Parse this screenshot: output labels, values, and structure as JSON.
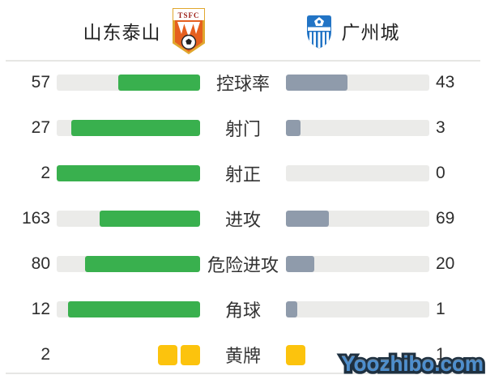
{
  "header": {
    "home": {
      "name": "山东泰山",
      "badge_icon": "shandong-taishan-crest"
    },
    "away": {
      "name": "广州城",
      "badge_icon": "guangzhou-city-crest"
    }
  },
  "chart_data": {
    "type": "bar",
    "subtype": "paired-horizontal-comparison",
    "title": "",
    "teams": {
      "home": "山东泰山",
      "away": "广州城"
    },
    "rows": [
      {
        "label": "控球率",
        "home": 57,
        "away": 43,
        "display": "bar"
      },
      {
        "label": "射门",
        "home": 27,
        "away": 3,
        "display": "bar"
      },
      {
        "label": "射正",
        "home": 2,
        "away": 0,
        "display": "bar"
      },
      {
        "label": "进攻",
        "home": 163,
        "away": 69,
        "display": "bar"
      },
      {
        "label": "危险进攻",
        "home": 80,
        "away": 20,
        "display": "bar"
      },
      {
        "label": "角球",
        "home": 12,
        "away": 1,
        "display": "bar"
      },
      {
        "label": "黄牌",
        "home": 2,
        "away": 1,
        "display": "cards"
      }
    ],
    "layout": {
      "home_fill_anchor": "right",
      "away_fill_anchor": "left",
      "fill_ratio_rule": "value / (home + away)"
    },
    "colors": {
      "home_fill": "#39b04e",
      "away_fill": "#8f9bab",
      "track": "#ebebe9",
      "yellow_card": "#fcc30d",
      "divider": "#e6e6e4",
      "text": "#2d2d2d"
    }
  },
  "watermark": {
    "text": "Yoozhibo.com"
  }
}
